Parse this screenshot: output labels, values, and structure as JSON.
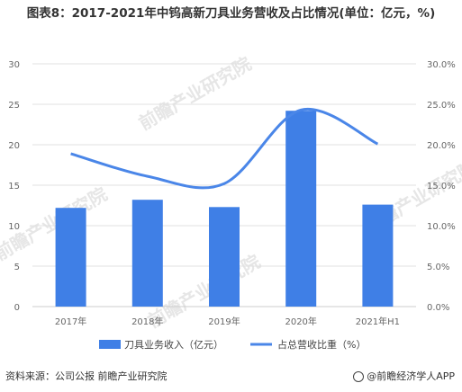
{
  "title": "图表8：2017-2021年中钨高新刀具业务营收及占比情况(单位：亿元，%)",
  "source_label": "资料来源：公司公报 前瞻产业研究院",
  "brand_label": "@前瞻经济学人APP",
  "watermark": "前瞻产业研究院",
  "colors": {
    "bar": "#3f7fe6",
    "line": "#4a86e8",
    "grid": "#e0e0e0",
    "axis": "#cccccc"
  },
  "chart_data": {
    "type": "bar",
    "categories": [
      "2017年",
      "2018年",
      "2019年",
      "2020年",
      "2021年H1"
    ],
    "series": [
      {
        "name": "刀具业务收入（亿元）",
        "type": "bar",
        "axis": "left",
        "values": [
          12.2,
          13.2,
          12.3,
          24.2,
          12.6
        ]
      },
      {
        "name": "占总营收比重（%）",
        "type": "line",
        "axis": "right",
        "values": [
          18.9,
          16.1,
          15.2,
          24.3,
          20.1
        ]
      }
    ],
    "ylim_left": [
      0,
      30
    ],
    "yticks_left": [
      "0",
      "5",
      "10",
      "15",
      "20",
      "25",
      "30"
    ],
    "ylim_right": [
      0,
      30
    ],
    "yticks_right": [
      "0.0%",
      "5.0%",
      "10.0%",
      "15.0%",
      "20.0%",
      "25.0%",
      "30.0%"
    ],
    "legend": "bottom",
    "grid": true
  }
}
